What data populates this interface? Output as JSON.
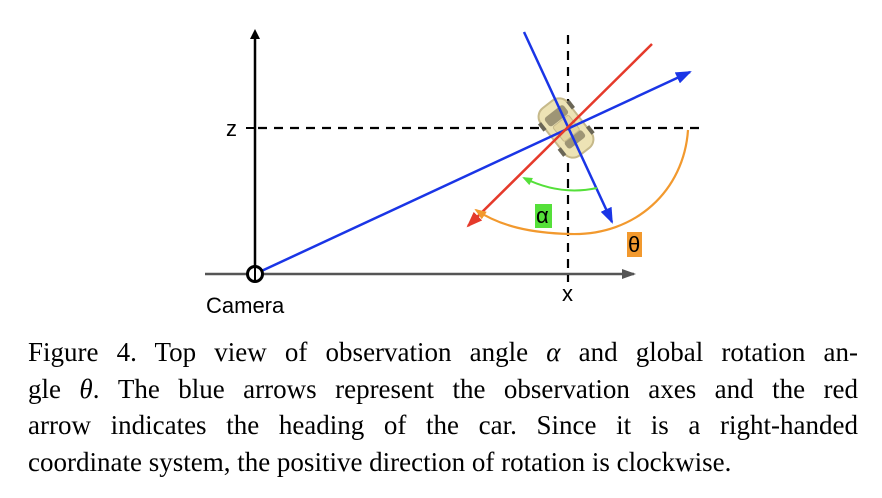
{
  "diagram": {
    "z_label": "z",
    "x_label": "x",
    "camera_label": "Camera",
    "alpha_label": "α",
    "theta_label": "θ",
    "colors": {
      "observation_axes": "#1a35e6",
      "heading": "#e53a2b",
      "alpha_arc": "#55e03a",
      "theta_arc": "#f2992e",
      "axes": "#555555",
      "alpha_badge": "#55e03a",
      "theta_badge": "#f2992e"
    }
  },
  "caption": {
    "line1_a": "Figure 4. Top view of observation angle ",
    "line1_sym": "α",
    "line1_b": " and global rotation an-",
    "line2_a": "gle ",
    "line2_sym": "θ",
    "line2_b": ".  The blue arrows represent the observation axes and the red",
    "line3": "arrow indicates the heading of the car.  Since it is a right-handed",
    "line4": "coordinate system, the positive direction of rotation is clockwise."
  }
}
